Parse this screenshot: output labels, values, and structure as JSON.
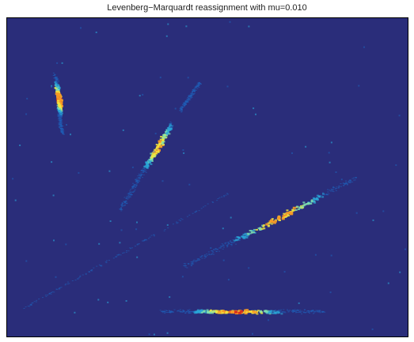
{
  "chart_data": {
    "type": "heatmap",
    "title": "Levenberg−Marquardt reassignment with mu=0.010",
    "xlabel": "",
    "ylabel": "",
    "axes_visible": false,
    "grid": false,
    "colormap": [
      "#2a2d7a",
      "#1f5fb8",
      "#2aa7d8",
      "#7fe0b0",
      "#f2e840",
      "#f59a26",
      "#d42c1f"
    ],
    "background_color": "#2a2d7a",
    "intensity_range": [
      0,
      1
    ],
    "ridges": [
      {
        "name": "",
        "x": [
          0.12,
          0.135
        ],
        "y": [
          0.18,
          0.36
        ],
        "peak_x": 0.128,
        "peak_y": 0.25,
        "peak": 1.0,
        "width": 0.014
      },
      {
        "name": "",
        "x": [
          0.28,
          0.41
        ],
        "y": [
          0.6,
          0.33
        ],
        "peak_x": 0.37,
        "peak_y": 0.4,
        "peak": 0.85,
        "width": 0.01
      },
      {
        "name": "",
        "x": [
          0.43,
          0.48
        ],
        "y": [
          0.29,
          0.2
        ],
        "peak_x": 0.46,
        "peak_y": 0.24,
        "peak": 0.25,
        "width": 0.006
      },
      {
        "name": "",
        "x": [
          0.44,
          0.87
        ],
        "y": [
          0.78,
          0.5
        ],
        "peak_x": 0.67,
        "peak_y": 0.61,
        "peak": 0.9,
        "width": 0.01
      },
      {
        "name": "",
        "x": [
          0.38,
          0.79
        ],
        "y": [
          0.92,
          0.92
        ],
        "peak_x": 0.57,
        "peak_y": 0.92,
        "peak": 1.0,
        "width": 0.008
      },
      {
        "name": "",
        "x": [
          0.04,
          0.55
        ],
        "y": [
          0.91,
          0.55
        ],
        "peak_x": 0.2,
        "peak_y": 0.8,
        "peak": 0.12,
        "width": 0.004
      }
    ]
  }
}
